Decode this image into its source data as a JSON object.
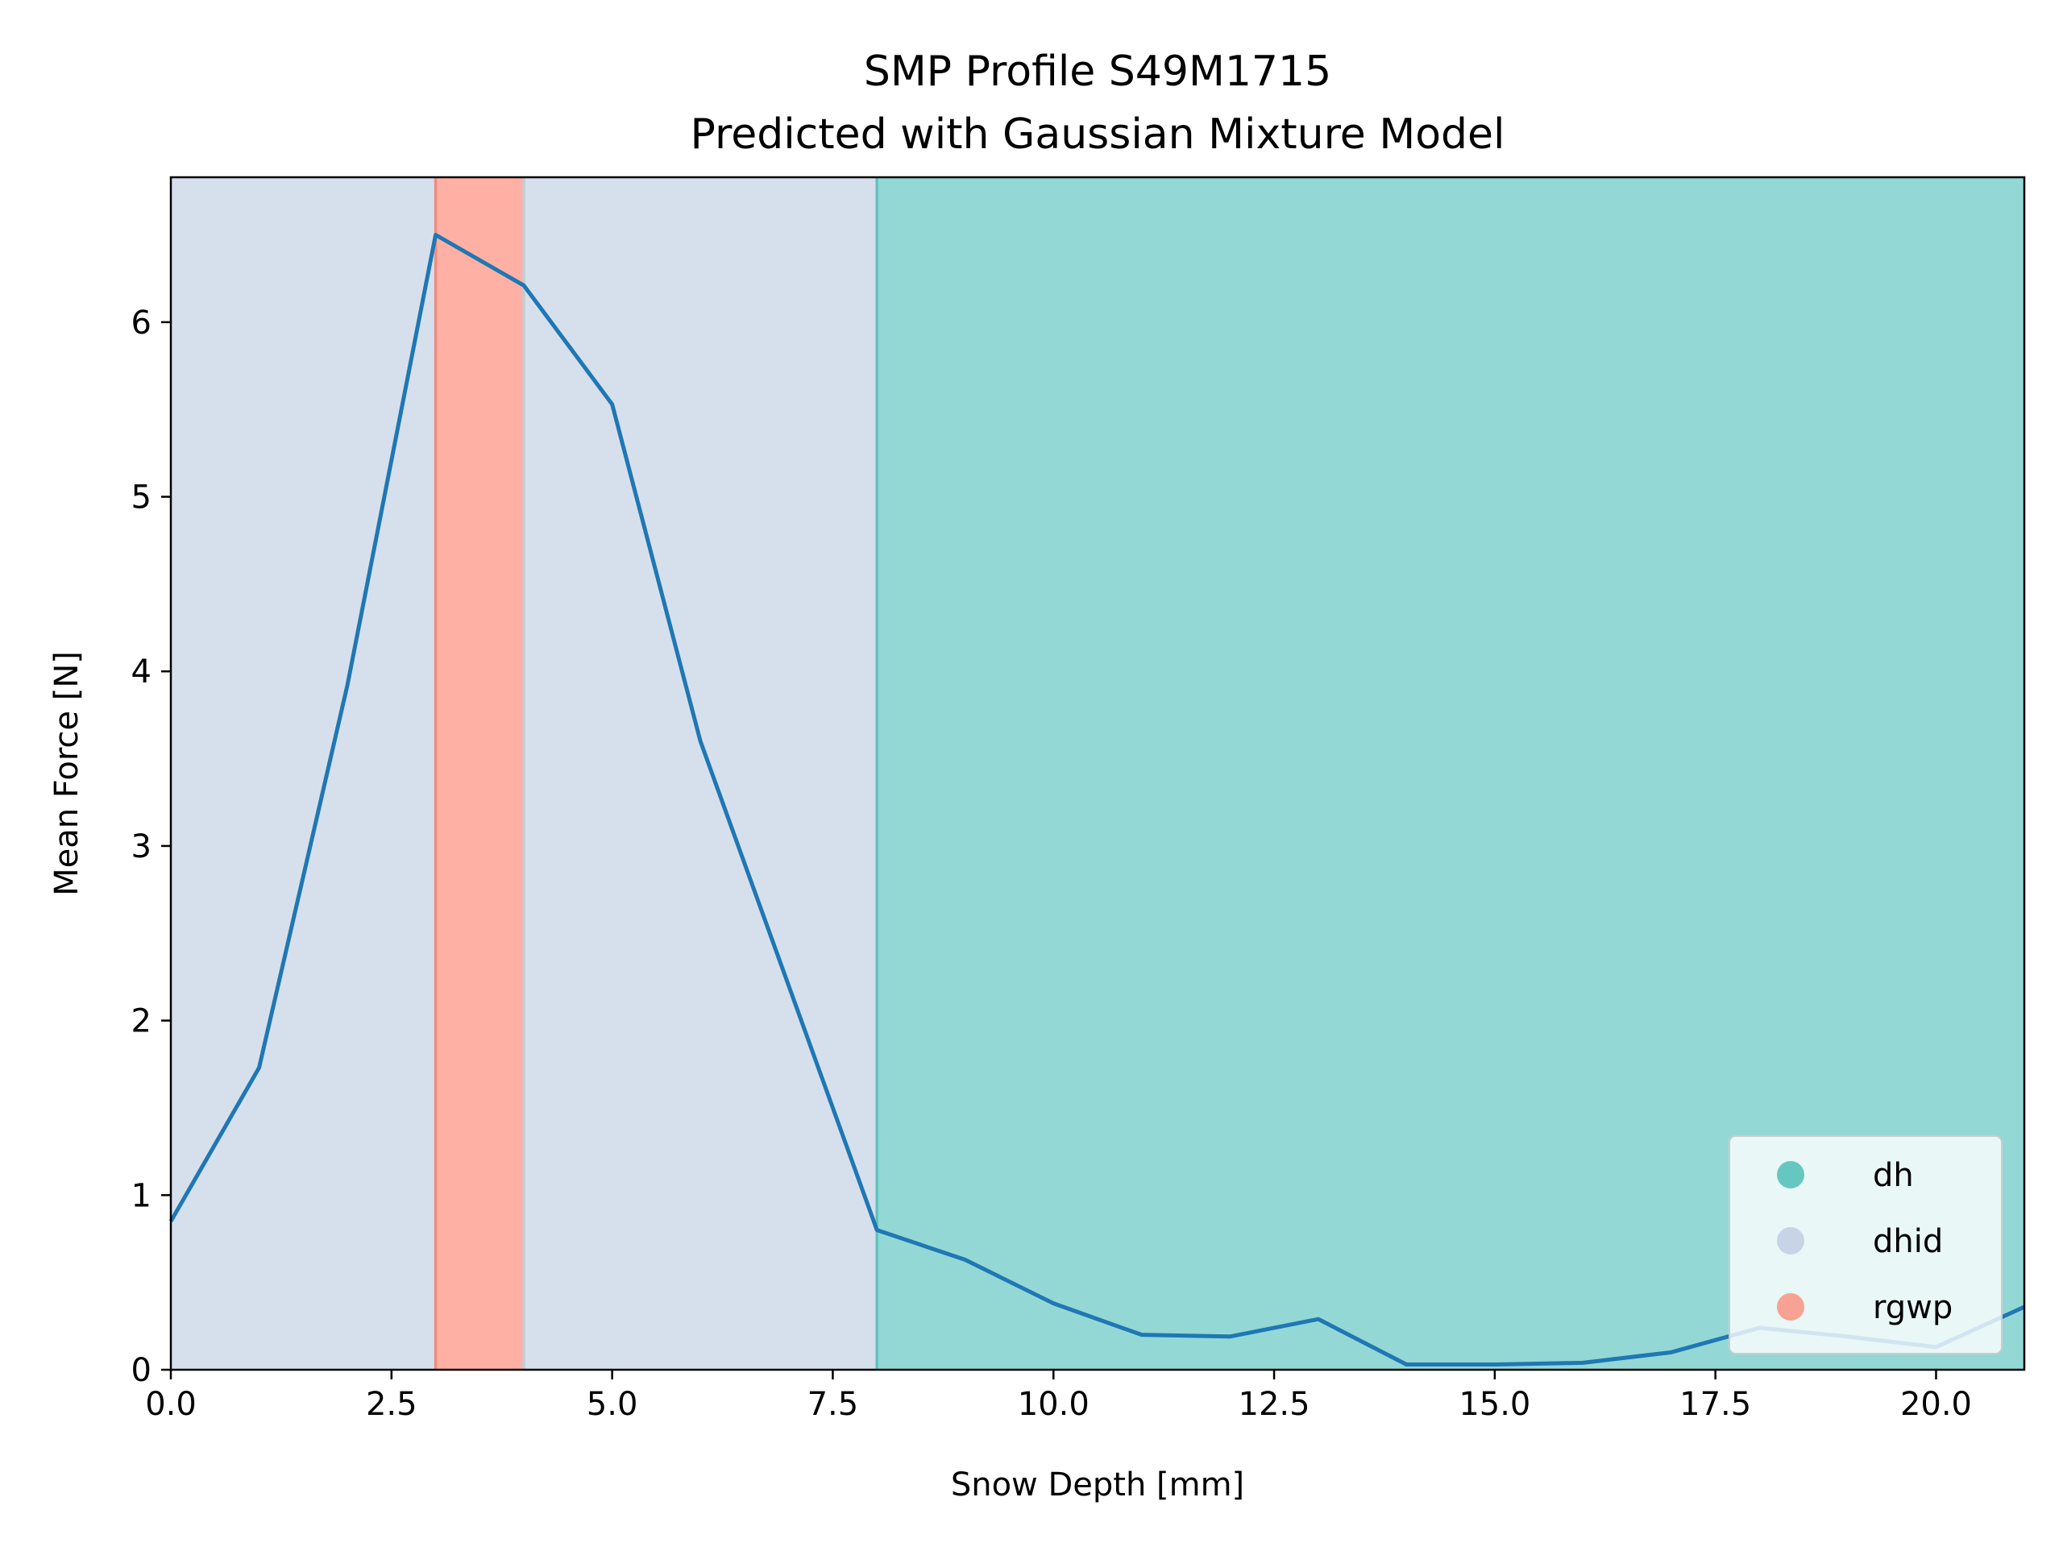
{
  "chart_data": {
    "type": "line",
    "title": "SMP Profile S49M1715",
    "subtitle": "Predicted with Gaussian Mixture Model",
    "xlabel": "Snow Depth [mm]",
    "ylabel": "Mean Force [N]",
    "xlim": [
      0,
      21
    ],
    "ylim": [
      0,
      6.83
    ],
    "xticks": [
      0,
      2.5,
      5,
      7.5,
      10,
      12.5,
      15,
      17.5,
      20
    ],
    "xtick_labels": [
      "0.0",
      "2.5",
      "5.0",
      "7.5",
      "10.0",
      "12.5",
      "15.0",
      "17.5",
      "20.0"
    ],
    "yticks": [
      0,
      1,
      2,
      3,
      4,
      5,
      6
    ],
    "ytick_labels": [
      "0",
      "1",
      "2",
      "3",
      "4",
      "5",
      "6"
    ],
    "grid": false,
    "legend_position": "bottom-right",
    "series": [
      {
        "name": "Mean Force",
        "color": "#1f77b4",
        "x": [
          0,
          1,
          2,
          3,
          4,
          5,
          6,
          7,
          8,
          9,
          10,
          11,
          12,
          13,
          14,
          15,
          16,
          17,
          18,
          19,
          20,
          21
        ],
        "y": [
          0.85,
          1.73,
          3.92,
          6.5,
          6.21,
          5.53,
          3.6,
          2.2,
          0.8,
          0.63,
          0.38,
          0.2,
          0.19,
          0.29,
          0.03,
          0.03,
          0.04,
          0.1,
          0.24,
          0.19,
          0.13,
          0.36
        ]
      }
    ],
    "segments": [
      {
        "label": "dhid",
        "start": 0,
        "end": 3,
        "color": "#d6e0ec"
      },
      {
        "label": "rgwp",
        "start": 3,
        "end": 4,
        "color": "#ffb0a4"
      },
      {
        "label": "dhid",
        "start": 4,
        "end": 8,
        "color": "#d6e0ec"
      },
      {
        "label": "dh",
        "start": 8,
        "end": 21,
        "color": "#93d8d5"
      }
    ],
    "boundaries": [
      {
        "x": 3,
        "color": "#f08b80"
      },
      {
        "x": 4,
        "color": "#c4ccd8"
      },
      {
        "x": 8,
        "color": "#5fc2bd"
      }
    ],
    "legend": [
      {
        "label": "dh",
        "color": "#66c7c0"
      },
      {
        "label": "dhid",
        "color": "#c6d4e6"
      },
      {
        "label": "rgwp",
        "color": "#f7a293"
      }
    ]
  }
}
